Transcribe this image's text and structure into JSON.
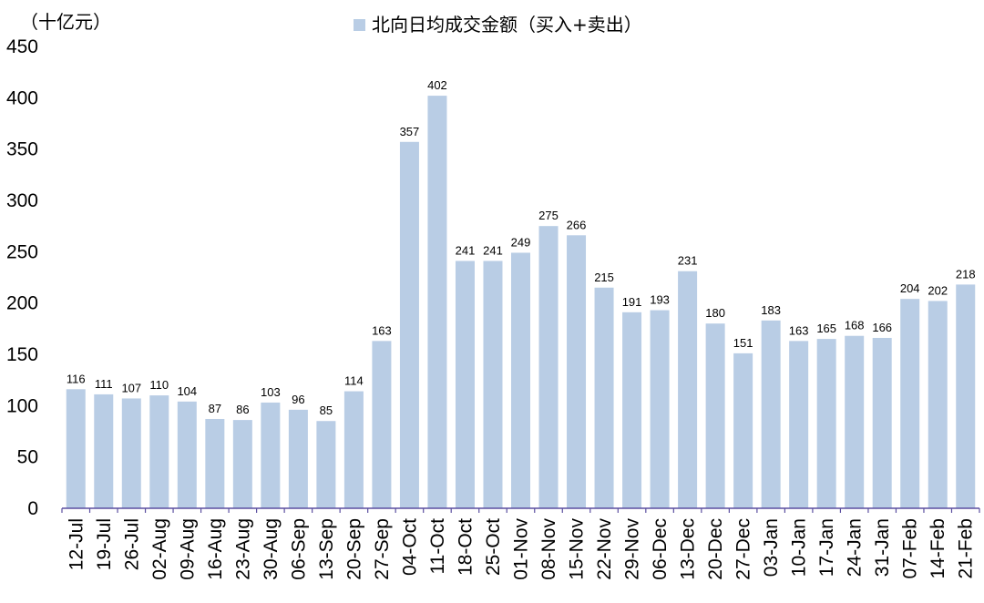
{
  "chart_data": {
    "type": "bar",
    "unit_label": "（十亿元）",
    "categories": [
      "12-Jul",
      "19-Jul",
      "26-Jul",
      "02-Aug",
      "09-Aug",
      "16-Aug",
      "23-Aug",
      "30-Aug",
      "06-Sep",
      "13-Sep",
      "20-Sep",
      "27-Sep",
      "04-Oct",
      "11-Oct",
      "18-Oct",
      "25-Oct",
      "01-Nov",
      "08-Nov",
      "15-Nov",
      "22-Nov",
      "29-Nov",
      "06-Dec",
      "13-Dec",
      "20-Dec",
      "27-Dec",
      "03-Jan",
      "10-Jan",
      "17-Jan",
      "24-Jan",
      "31-Jan",
      "07-Feb",
      "14-Feb",
      "21-Feb"
    ],
    "series": [
      {
        "name": "北向日均成交金额（买入+卖出）",
        "values": [
          116,
          111,
          107,
          110,
          104,
          87,
          86,
          103,
          96,
          85,
          114,
          163,
          357,
          402,
          241,
          241,
          249,
          275,
          266,
          215,
          191,
          193,
          231,
          180,
          151,
          183,
          163,
          165,
          168,
          166,
          204,
          202,
          218
        ]
      }
    ],
    "ylim": [
      0,
      450
    ],
    "yticks": [
      0,
      50,
      100,
      150,
      200,
      250,
      300,
      350,
      400,
      450
    ],
    "legend_position": "top",
    "grid": false,
    "colors": {
      "bar": "#b9cde5",
      "axis": "#5b4fa0",
      "text": "#000000"
    }
  }
}
